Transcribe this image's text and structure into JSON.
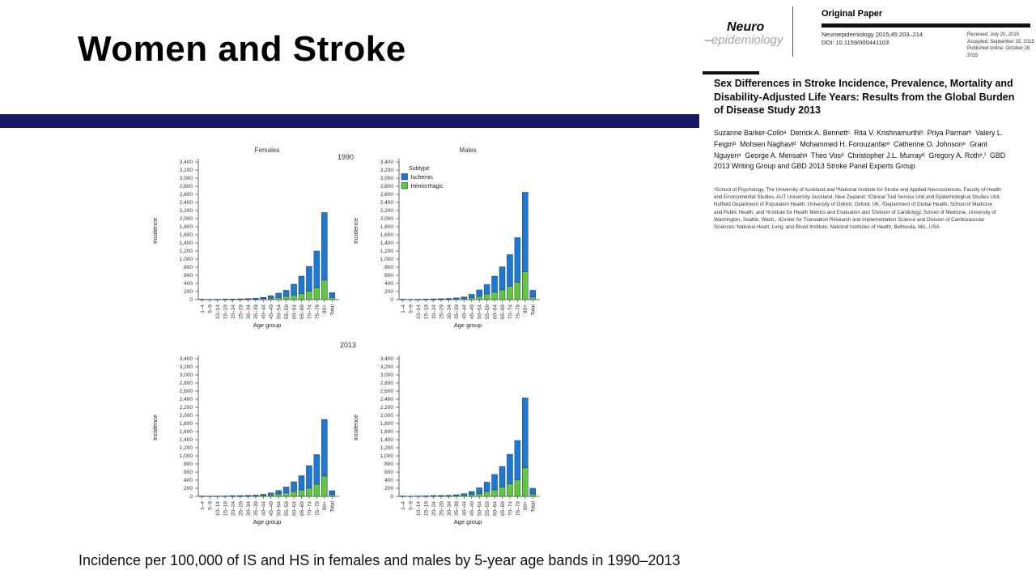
{
  "slide": {
    "title": "Women and Stroke",
    "caption": "Incidence per 100,000 of IS and HS in females and males by 5-year age bands in 1990–2013",
    "accent_bar_color": "#17176b"
  },
  "figure": {
    "year_labels": [
      "1990",
      "2013"
    ],
    "legend": {
      "title": "Subtype",
      "items": [
        {
          "label": "Ischemic",
          "color": "#1e78d2"
        },
        {
          "label": "Hemorrhagic",
          "color": "#63c63c"
        }
      ]
    }
  },
  "chart_data": [
    {
      "type": "bar",
      "stacked": true,
      "title": "Females",
      "year": "1990",
      "show_title": true,
      "show_legend": false,
      "xlabel": "Age group",
      "ylabel": "Incidence",
      "ylim": [
        0,
        3400
      ],
      "ytick_step": 200,
      "grid": false,
      "categories": [
        "1–4",
        "5–9",
        "10–14",
        "15–19",
        "20–24",
        "25–29",
        "30–34",
        "35–39",
        "40–44",
        "45–49",
        "50–54",
        "55–59",
        "60–64",
        "65–69",
        "70–74",
        "75–79",
        "80+",
        "Total"
      ],
      "series": [
        {
          "name": "Hemorrhagic",
          "color": "#63c63c",
          "values": [
            5,
            3,
            4,
            6,
            8,
            9,
            12,
            15,
            25,
            35,
            50,
            80,
            110,
            150,
            210,
            290,
            480,
            55
          ]
        },
        {
          "name": "Ischemic",
          "color": "#1e78d2",
          "values": [
            5,
            2,
            4,
            6,
            7,
            9,
            13,
            20,
            30,
            60,
            110,
            150,
            270,
            430,
            610,
            910,
            1670,
            115
          ]
        }
      ]
    },
    {
      "type": "bar",
      "stacked": true,
      "title": "Males",
      "year": "1990",
      "show_title": true,
      "show_legend": true,
      "xlabel": "Age group",
      "ylabel": "Incidence",
      "ylim": [
        0,
        3400
      ],
      "ytick_step": 200,
      "grid": false,
      "categories": [
        "1–4",
        "5–9",
        "10–14",
        "15–19",
        "20–24",
        "25–29",
        "30–34",
        "35–39",
        "40–44",
        "45–49",
        "50–54",
        "55–59",
        "60–64",
        "65–69",
        "70–74",
        "75–79",
        "80+",
        "Total"
      ],
      "series": [
        {
          "name": "Hemorrhagic",
          "color": "#63c63c",
          "values": [
            5,
            3,
            4,
            6,
            9,
            11,
            14,
            20,
            25,
            45,
            80,
            140,
            180,
            240,
            330,
            430,
            690,
            65
          ]
        },
        {
          "name": "Ischemic",
          "color": "#1e78d2",
          "values": [
            5,
            2,
            4,
            6,
            9,
            11,
            14,
            22,
            40,
            85,
            160,
            230,
            400,
            570,
            780,
            1100,
            1960,
            165
          ]
        }
      ]
    },
    {
      "type": "bar",
      "stacked": true,
      "title": "Females",
      "year": "2013",
      "show_title": false,
      "show_legend": false,
      "xlabel": "Age group",
      "ylabel": "Incidence",
      "ylim": [
        0,
        3400
      ],
      "ytick_step": 200,
      "grid": false,
      "categories": [
        "1–4",
        "5–9",
        "10–14",
        "15–19",
        "20–24",
        "25–29",
        "30–34",
        "35–39",
        "40–44",
        "45–49",
        "50–54",
        "55–59",
        "60–64",
        "65–69",
        "70–74",
        "75–79",
        "80+",
        "Total"
      ],
      "series": [
        {
          "name": "Hemorrhagic",
          "color": "#63c63c",
          "values": [
            4,
            3,
            3,
            5,
            7,
            9,
            11,
            14,
            22,
            35,
            60,
            85,
            120,
            160,
            200,
            300,
            500,
            45
          ]
        },
        {
          "name": "Ischemic",
          "color": "#1e78d2",
          "values": [
            4,
            2,
            3,
            5,
            8,
            9,
            11,
            16,
            28,
            50,
            85,
            145,
            240,
            350,
            560,
            730,
            1400,
            95
          ]
        }
      ]
    },
    {
      "type": "bar",
      "stacked": true,
      "title": "Males",
      "year": "2013",
      "show_title": false,
      "show_legend": false,
      "xlabel": "Age group",
      "ylabel": "Incidence",
      "ylim": [
        0,
        3400
      ],
      "ytick_step": 200,
      "grid": false,
      "categories": [
        "1–4",
        "5–9",
        "10–14",
        "15–19",
        "20–24",
        "25–29",
        "30–34",
        "35–39",
        "40–44",
        "45–49",
        "50–54",
        "55–59",
        "60–64",
        "65–69",
        "70–74",
        "75–79",
        "80+",
        "Total"
      ],
      "series": [
        {
          "name": "Hemorrhagic",
          "color": "#63c63c",
          "values": [
            5,
            3,
            4,
            6,
            10,
            11,
            12,
            20,
            30,
            50,
            70,
            120,
            160,
            230,
            310,
            410,
            710,
            60
          ]
        },
        {
          "name": "Ischemic",
          "color": "#1e78d2",
          "values": [
            5,
            2,
            4,
            6,
            10,
            11,
            13,
            20,
            35,
            70,
            140,
            230,
            380,
            510,
            730,
            970,
            1720,
            140
          ]
        }
      ]
    }
  ],
  "paper": {
    "journal_logo_line1": "Neuro",
    "journal_logo_line2": "epidemiology",
    "section_label": "Original Paper",
    "citation": "Neuroepidemiology 2015;45:203–214",
    "doi": "DOI: 10.1159/000441103",
    "received": "Received: July 20, 2015",
    "accepted": "Accepted: September 15, 2015",
    "published": "Published online: October 28, 2015",
    "title": "Sex Differences in Stroke Incidence, Prevalence, Mortality and Disability-Adjusted Life Years: Results from the Global Burden of Disease Study 2013",
    "authors": "Suzanne Barker-Colloᵃ  Derrick A. Bennettᶜ  Rita V. Krishnamurthiᵇ  Priya Parmarᵇ  Valery L. Feiginᵇ  Mohsen Naghaviᵈ  Mohammed H. Forouzanfarᵉ  Catherine O. Johnsonᵉ  Grant Nguyenᵉ  George A. Mensahᵍ  Theo Vosᵈ  Christopher J.L. Murrayᵈ  Gregory A. Rothᵉ,ᶠ  GBD 2013 Writing Group and GBD 2013 Stroke Panel Experts Group",
    "affiliations": "ᵃSchool of Psychology, The University of Auckland and ᵇNational Institute for Stroke and Applied Neurosciences, Faculty of Health and Environmental Studies, AUT University, Auckland, New Zealand; ᶜClinical Trial Service Unit and Epidemiological Studies Unit, Nuffield Department of Population Health, University of Oxford, Oxford, UK; ᵈDepartment of Global Health, School of Medicine and Public Health, and ᵉInstitute for Health Metrics and Evaluation and ᶠDivision of Cardiology, School of Medicine, University of Washington, Seattle, Wash., ᵍCenter for Translation Research and Implementation Science and Division of Cardiovascular Sciences; National Heart, Lung, and Blood Institute; National Institutes of Health, Bethesda, Md., USA"
  }
}
